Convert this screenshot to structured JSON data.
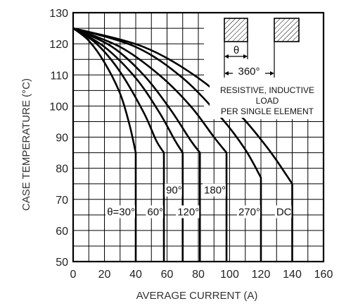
{
  "chart_data": {
    "type": "line",
    "xlabel": "AVERAGE CURRENT (A)",
    "ylabel": "CASE TEMPERATURE (°C)",
    "xlim": [
      0,
      160
    ],
    "ylim": [
      50,
      130
    ],
    "x_ticks": [
      "0",
      "20",
      "40",
      "60",
      "80",
      "100",
      "120",
      "140",
      "160"
    ],
    "y_ticks": [
      "50",
      "60",
      "70",
      "80",
      "90",
      "100",
      "110",
      "120",
      "130"
    ],
    "grid": true,
    "series": [
      {
        "name": "θ=30°",
        "points": [
          [
            0,
            125
          ],
          [
            10,
            121
          ],
          [
            20,
            114
          ],
          [
            30,
            104
          ],
          [
            36,
            94
          ],
          [
            40,
            85
          ],
          [
            40,
            50
          ]
        ]
      },
      {
        "name": "60°",
        "points": [
          [
            0,
            125
          ],
          [
            15,
            120
          ],
          [
            30,
            111
          ],
          [
            45,
            98
          ],
          [
            53,
            89
          ],
          [
            58,
            85
          ],
          [
            58,
            50
          ]
        ]
      },
      {
        "name": "90°",
        "points": [
          [
            0,
            125
          ],
          [
            20,
            119
          ],
          [
            40,
            109
          ],
          [
            55,
            98
          ],
          [
            65,
            89
          ],
          [
            70,
            85
          ],
          [
            70,
            50
          ]
        ]
      },
      {
        "name": "120°",
        "points": [
          [
            0,
            125
          ],
          [
            25,
            119
          ],
          [
            45,
            110
          ],
          [
            62,
            99
          ],
          [
            75,
            89
          ],
          [
            81,
            85
          ],
          [
            81,
            50
          ]
        ]
      },
      {
        "name": "180°",
        "points": [
          [
            0,
            125
          ],
          [
            30,
            119
          ],
          [
            55,
            110
          ],
          [
            75,
            100
          ],
          [
            90,
            90
          ],
          [
            98,
            85
          ],
          [
            98,
            50
          ]
        ]
      },
      {
        "name": "270°",
        "points": [
          [
            0,
            125
          ],
          [
            40,
            119
          ],
          [
            70,
            109
          ],
          [
            95,
            96
          ],
          [
            110,
            86
          ],
          [
            120,
            77
          ],
          [
            120,
            50
          ]
        ]
      },
      {
        "name": "DC",
        "points": [
          [
            0,
            125
          ],
          [
            45,
            119
          ],
          [
            80,
            109
          ],
          [
            105,
            98
          ],
          [
            125,
            86
          ],
          [
            140,
            75
          ],
          [
            140,
            50
          ]
        ]
      }
    ],
    "annotations": {
      "theta": "θ",
      "period": "360°",
      "load_line1": "RESISTIVE, INDUCTIVE",
      "load_line2": "LOAD",
      "load_line3": "PER SINGLE ELEMENT"
    }
  }
}
